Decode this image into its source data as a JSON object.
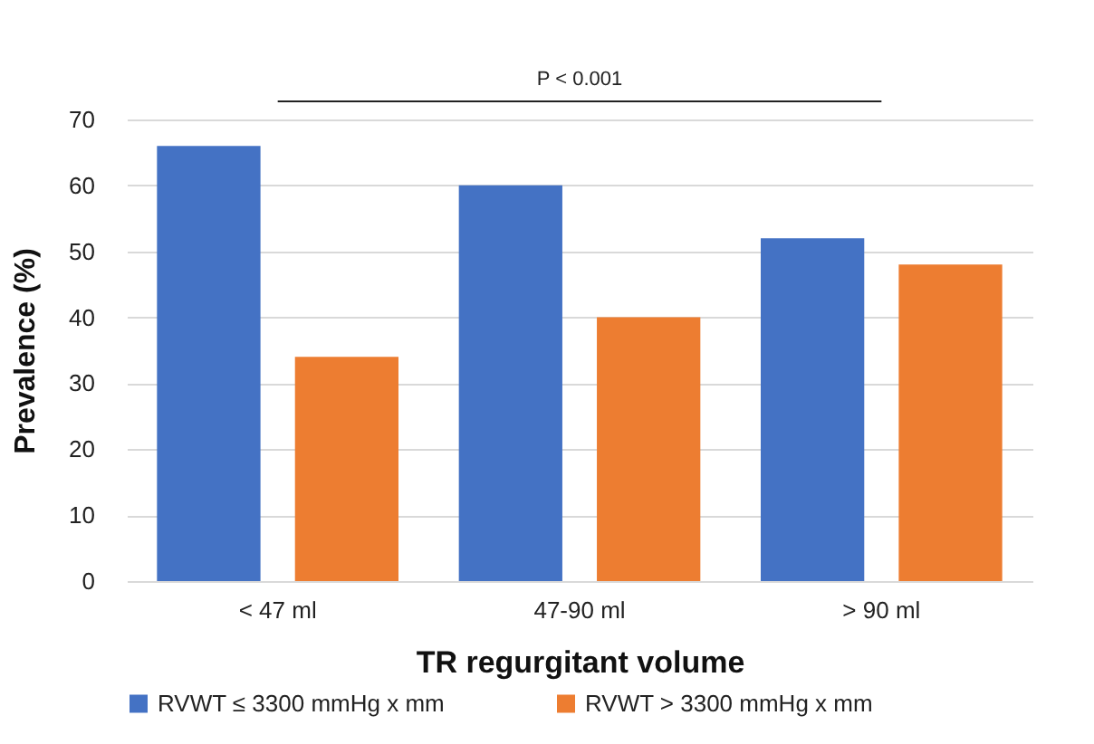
{
  "chart_data": {
    "type": "bar",
    "xlabel": "TR regurgitant volume",
    "ylabel": "Prevalence (%)",
    "categories": [
      "< 47 ml",
      "47-90 ml",
      "> 90 ml"
    ],
    "series": [
      {
        "name": "RVWT ≤ 3300 mmHg x mm",
        "color": "#4472c4",
        "values": [
          66,
          60,
          52
        ]
      },
      {
        "name": "RVWT > 3300 mmHg x mm",
        "color": "#ed7d31",
        "values": [
          34,
          40,
          48
        ]
      }
    ],
    "ylim": [
      0,
      70
    ],
    "yticks": [
      0,
      10,
      20,
      30,
      40,
      50,
      60,
      70
    ],
    "grid": "y",
    "legend": "bottom",
    "annotations": [
      "P < 0.001"
    ]
  }
}
